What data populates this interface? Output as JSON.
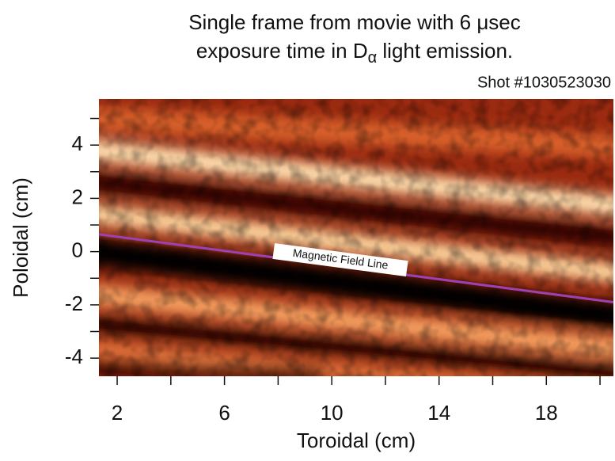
{
  "chart_data": {
    "type": "image",
    "title_lines": [
      "Single frame from movie with 6 μsec",
      "exposure time in D",
      "α",
      " light emission."
    ],
    "subtitle": "Shot #1030523030",
    "x_label": "Toroidal (cm)",
    "y_label": "Poloidal (cm)",
    "xlim": [
      1.32,
      20.5
    ],
    "ylim": [
      -4.68,
      5.73
    ],
    "xticks": [
      2,
      6,
      10,
      14,
      18
    ],
    "xminor": [
      4,
      8,
      12,
      16,
      20
    ],
    "yticks": [
      -4,
      -2,
      0,
      2,
      4
    ],
    "yminor": [
      -3,
      -1,
      1,
      3,
      5
    ],
    "field_line": {
      "label": "Magnetic Field Line",
      "x": [
        1.32,
        20.5
      ],
      "y": [
        0.65,
        -1.9
      ],
      "color": "#a040b0"
    }
  }
}
